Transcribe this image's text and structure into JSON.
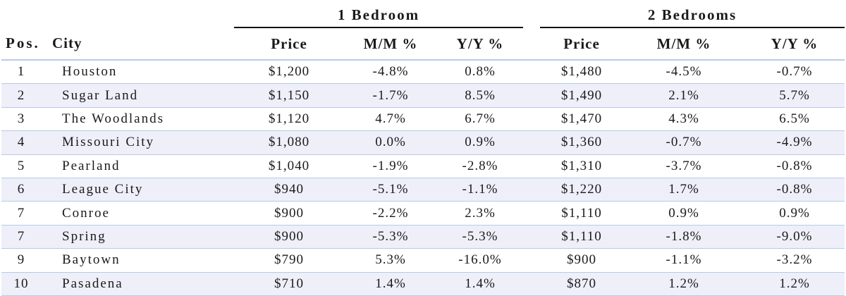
{
  "groups": {
    "one_bedroom": "1 Bedroom",
    "two_bedrooms": "2 Bedrooms"
  },
  "columns": {
    "pos": "Pos.",
    "city": "City",
    "price_1": "Price",
    "mm_1": "M/M %",
    "yy_1": "Y/Y %",
    "price_2": "Price",
    "mm_2": "M/M %",
    "yy_2": "Y/Y %"
  },
  "rows": [
    {
      "pos": "1",
      "city": "Houston",
      "price_1": "$1,200",
      "mm_1": "-4.8%",
      "yy_1": "0.8%",
      "price_2": "$1,480",
      "mm_2": "-4.5%",
      "yy_2": "-0.7%"
    },
    {
      "pos": "2",
      "city": "Sugar Land",
      "price_1": "$1,150",
      "mm_1": "-1.7%",
      "yy_1": "8.5%",
      "price_2": "$1,490",
      "mm_2": "2.1%",
      "yy_2": "5.7%"
    },
    {
      "pos": "3",
      "city": "The Woodlands",
      "price_1": "$1,120",
      "mm_1": "4.7%",
      "yy_1": "6.7%",
      "price_2": "$1,470",
      "mm_2": "4.3%",
      "yy_2": "6.5%"
    },
    {
      "pos": "4",
      "city": "Missouri City",
      "price_1": "$1,080",
      "mm_1": "0.0%",
      "yy_1": "0.9%",
      "price_2": "$1,360",
      "mm_2": "-0.7%",
      "yy_2": "-4.9%"
    },
    {
      "pos": "5",
      "city": "Pearland",
      "price_1": "$1,040",
      "mm_1": "-1.9%",
      "yy_1": "-2.8%",
      "price_2": "$1,310",
      "mm_2": "-3.7%",
      "yy_2": "-0.8%"
    },
    {
      "pos": "6",
      "city": "League City",
      "price_1": "$940",
      "mm_1": "-5.1%",
      "yy_1": "-1.1%",
      "price_2": "$1,220",
      "mm_2": "1.7%",
      "yy_2": "-0.8%"
    },
    {
      "pos": "7",
      "city": "Conroe",
      "price_1": "$900",
      "mm_1": "-2.2%",
      "yy_1": "2.3%",
      "price_2": "$1,110",
      "mm_2": "0.9%",
      "yy_2": "0.9%"
    },
    {
      "pos": "7",
      "city": "Spring",
      "price_1": "$900",
      "mm_1": "-5.3%",
      "yy_1": "-5.3%",
      "price_2": "$1,110",
      "mm_2": "-1.8%",
      "yy_2": "-9.0%"
    },
    {
      "pos": "9",
      "city": "Baytown",
      "price_1": "$790",
      "mm_1": "5.3%",
      "yy_1": "-16.0%",
      "price_2": "$900",
      "mm_2": "-1.1%",
      "yy_2": "-3.2%"
    },
    {
      "pos": "10",
      "city": "Pasadena",
      "price_1": "$710",
      "mm_1": "1.4%",
      "yy_1": "1.4%",
      "price_2": "$870",
      "mm_2": "1.2%",
      "yy_2": "1.2%"
    }
  ],
  "colors": {
    "row_alt_bg": "#eeeff9",
    "row_rule": "#b7cbe6",
    "group_rule": "#111111",
    "text": "#1a1a1a"
  }
}
